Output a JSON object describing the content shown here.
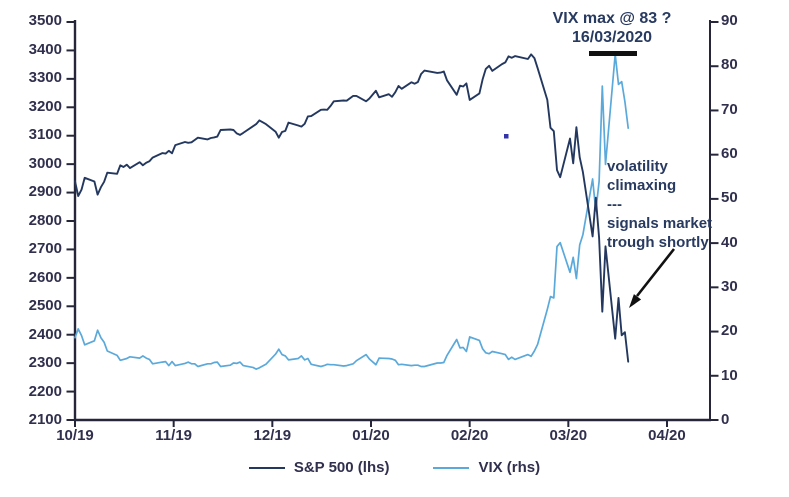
{
  "page": {
    "background": "#ffffff"
  },
  "annotations": {
    "vix_max_line1": "VIX max @ 83 ?",
    "vix_max_line2": "16/03/2020",
    "note_lines": [
      "volatility",
      "climaxing",
      "---",
      "signals market",
      "trough shortly"
    ]
  },
  "legend": {
    "items": [
      {
        "label": "S&P 500 (lhs)",
        "color": "#24385f"
      },
      {
        "label": "VIX (rhs)",
        "color": "#5aa9da"
      }
    ]
  },
  "colors": {
    "sp500_line": "#24385f",
    "vix_line": "#5aa9da",
    "axis": "#26263a",
    "text": "#30304e",
    "annotation_black": "#111111",
    "stray_dot": "#3333aa"
  },
  "chart_data": {
    "type": "line",
    "title": "",
    "x_axis": {
      "tick_labels": [
        "10/19",
        "11/19",
        "12/19",
        "01/20",
        "02/20",
        "03/20",
        "04/20"
      ],
      "start_date": "2019-10-01",
      "span_days": 183,
      "note": "series x values are days since 2019-10-01"
    },
    "left_axis": {
      "label": "S&P 500",
      "min": 2100,
      "max": 3500,
      "step": 100,
      "tick_labels": [
        "3500",
        "3400",
        "3300",
        "3200",
        "3100",
        "3000",
        "2900",
        "2800",
        "2700",
        "2600",
        "2500",
        "2400",
        "2300",
        "2200",
        "2100"
      ]
    },
    "right_axis": {
      "label": "VIX",
      "min": 0,
      "max": 90,
      "step": 10,
      "tick_labels": [
        "90",
        "80",
        "70",
        "60",
        "50",
        "40",
        "30",
        "20",
        "10",
        "0"
      ]
    },
    "grid": false,
    "legend_position": "bottom-center",
    "annotations": {
      "vix_max_value": 83,
      "vix_max_date": "16/03/2020"
    },
    "series": [
      {
        "name": "S&P 500 (lhs)",
        "axis": "left",
        "color": "#24385f",
        "points": [
          [
            0,
            2940
          ],
          [
            1,
            2888
          ],
          [
            2,
            2910
          ],
          [
            3,
            2952
          ],
          [
            6,
            2939
          ],
          [
            7,
            2893
          ],
          [
            8,
            2919
          ],
          [
            9,
            2938
          ],
          [
            10,
            2970
          ],
          [
            13,
            2966
          ],
          [
            14,
            2996
          ],
          [
            15,
            2990
          ],
          [
            16,
            2998
          ],
          [
            17,
            2986
          ],
          [
            20,
            3007
          ],
          [
            21,
            2996
          ],
          [
            22,
            3005
          ],
          [
            23,
            3010
          ],
          [
            24,
            3023
          ],
          [
            27,
            3039
          ],
          [
            28,
            3037
          ],
          [
            29,
            3047
          ],
          [
            30,
            3038
          ],
          [
            31,
            3067
          ],
          [
            34,
            3078
          ],
          [
            35,
            3075
          ],
          [
            36,
            3077
          ],
          [
            37,
            3085
          ],
          [
            38,
            3093
          ],
          [
            41,
            3087
          ],
          [
            42,
            3092
          ],
          [
            43,
            3094
          ],
          [
            44,
            3097
          ],
          [
            45,
            3120
          ],
          [
            48,
            3122
          ],
          [
            49,
            3120
          ],
          [
            50,
            3108
          ],
          [
            51,
            3103
          ],
          [
            52,
            3110
          ],
          [
            55,
            3133
          ],
          [
            56,
            3141
          ],
          [
            57,
            3154
          ],
          [
            59,
            3141
          ],
          [
            62,
            3114
          ],
          [
            63,
            3093
          ],
          [
            64,
            3113
          ],
          [
            65,
            3117
          ],
          [
            66,
            3146
          ],
          [
            69,
            3136
          ],
          [
            70,
            3132
          ],
          [
            71,
            3142
          ],
          [
            72,
            3168
          ],
          [
            73,
            3169
          ],
          [
            76,
            3191
          ],
          [
            77,
            3192
          ],
          [
            78,
            3191
          ],
          [
            79,
            3205
          ],
          [
            80,
            3221
          ],
          [
            83,
            3224
          ],
          [
            84,
            3223
          ],
          [
            86,
            3240
          ],
          [
            87,
            3240
          ],
          [
            90,
            3221
          ],
          [
            91,
            3231
          ],
          [
            93,
            3258
          ],
          [
            94,
            3235
          ],
          [
            97,
            3246
          ],
          [
            98,
            3237
          ],
          [
            99,
            3253
          ],
          [
            100,
            3275
          ],
          [
            101,
            3265
          ],
          [
            104,
            3288
          ],
          [
            105,
            3283
          ],
          [
            106,
            3289
          ],
          [
            107,
            3317
          ],
          [
            108,
            3329
          ],
          [
            112,
            3321
          ],
          [
            113,
            3322
          ],
          [
            114,
            3326
          ],
          [
            115,
            3295
          ],
          [
            118,
            3244
          ],
          [
            119,
            3276
          ],
          [
            120,
            3273
          ],
          [
            121,
            3284
          ],
          [
            122,
            3226
          ],
          [
            125,
            3249
          ],
          [
            126,
            3298
          ],
          [
            127,
            3335
          ],
          [
            128,
            3346
          ],
          [
            129,
            3328
          ],
          [
            132,
            3352
          ],
          [
            133,
            3358
          ],
          [
            134,
            3379
          ],
          [
            135,
            3374
          ],
          [
            136,
            3380
          ],
          [
            140,
            3370
          ],
          [
            141,
            3386
          ],
          [
            142,
            3373
          ],
          [
            143,
            3338
          ],
          [
            146,
            3226
          ],
          [
            147,
            3128
          ],
          [
            148,
            3116
          ],
          [
            149,
            2979
          ],
          [
            150,
            2954
          ],
          [
            153,
            3090
          ],
          [
            154,
            3003
          ],
          [
            155,
            3130
          ],
          [
            156,
            3024
          ],
          [
            157,
            2972
          ],
          [
            160,
            2746
          ],
          [
            161,
            2882
          ],
          [
            162,
            2741
          ],
          [
            163,
            2481
          ],
          [
            164,
            2711
          ],
          [
            167,
            2386
          ],
          [
            168,
            2529
          ],
          [
            169,
            2398
          ],
          [
            170,
            2409
          ],
          [
            171,
            2305
          ]
        ]
      },
      {
        "name": "VIX (rhs)",
        "axis": "right",
        "color": "#5aa9da",
        "points": [
          [
            0,
            18.6
          ],
          [
            1,
            20.6
          ],
          [
            2,
            19.1
          ],
          [
            3,
            17.0
          ],
          [
            6,
            17.9
          ],
          [
            7,
            20.3
          ],
          [
            8,
            18.6
          ],
          [
            9,
            17.6
          ],
          [
            10,
            15.6
          ],
          [
            13,
            14.6
          ],
          [
            14,
            13.5
          ],
          [
            15,
            13.7
          ],
          [
            16,
            13.9
          ],
          [
            17,
            14.3
          ],
          [
            20,
            14.0
          ],
          [
            21,
            14.5
          ],
          [
            22,
            14.0
          ],
          [
            23,
            13.7
          ],
          [
            24,
            12.7
          ],
          [
            27,
            13.1
          ],
          [
            28,
            13.2
          ],
          [
            29,
            12.3
          ],
          [
            30,
            13.2
          ],
          [
            31,
            12.3
          ],
          [
            34,
            12.8
          ],
          [
            35,
            13.1
          ],
          [
            36,
            12.7
          ],
          [
            37,
            12.7
          ],
          [
            38,
            12.1
          ],
          [
            41,
            12.7
          ],
          [
            42,
            12.7
          ],
          [
            43,
            13.0
          ],
          [
            44,
            13.1
          ],
          [
            45,
            12.1
          ],
          [
            48,
            12.4
          ],
          [
            49,
            12.9
          ],
          [
            50,
            12.8
          ],
          [
            51,
            13.1
          ],
          [
            52,
            12.3
          ],
          [
            55,
            11.9
          ],
          [
            56,
            11.5
          ],
          [
            57,
            11.8
          ],
          [
            59,
            12.6
          ],
          [
            62,
            14.9
          ],
          [
            63,
            16.0
          ],
          [
            64,
            14.8
          ],
          [
            65,
            14.5
          ],
          [
            66,
            13.6
          ],
          [
            69,
            13.9
          ],
          [
            70,
            14.5
          ],
          [
            71,
            13.6
          ],
          [
            72,
            13.9
          ],
          [
            73,
            12.6
          ],
          [
            76,
            12.1
          ],
          [
            77,
            12.3
          ],
          [
            78,
            12.6
          ],
          [
            79,
            12.5
          ],
          [
            80,
            12.5
          ],
          [
            83,
            12.2
          ],
          [
            84,
            12.3
          ],
          [
            86,
            12.7
          ],
          [
            87,
            13.4
          ],
          [
            90,
            14.8
          ],
          [
            91,
            13.8
          ],
          [
            93,
            12.5
          ],
          [
            94,
            14.0
          ],
          [
            97,
            13.9
          ],
          [
            98,
            13.8
          ],
          [
            99,
            13.5
          ],
          [
            100,
            12.5
          ],
          [
            101,
            12.6
          ],
          [
            104,
            12.3
          ],
          [
            105,
            12.4
          ],
          [
            106,
            12.4
          ],
          [
            107,
            12.1
          ],
          [
            108,
            12.1
          ],
          [
            112,
            12.9
          ],
          [
            113,
            12.9
          ],
          [
            114,
            13.0
          ],
          [
            115,
            14.6
          ],
          [
            118,
            18.2
          ],
          [
            119,
            16.3
          ],
          [
            120,
            16.4
          ],
          [
            121,
            15.5
          ],
          [
            122,
            18.8
          ],
          [
            125,
            18.0
          ],
          [
            126,
            16.1
          ],
          [
            127,
            15.2
          ],
          [
            128,
            15.0
          ],
          [
            129,
            15.5
          ],
          [
            132,
            15.0
          ],
          [
            133,
            14.8
          ],
          [
            134,
            13.7
          ],
          [
            135,
            14.2
          ],
          [
            136,
            13.7
          ],
          [
            140,
            14.8
          ],
          [
            141,
            14.4
          ],
          [
            142,
            15.6
          ],
          [
            143,
            17.1
          ],
          [
            146,
            25.0
          ],
          [
            147,
            27.9
          ],
          [
            148,
            27.6
          ],
          [
            149,
            39.2
          ],
          [
            150,
            40.1
          ],
          [
            153,
            33.4
          ],
          [
            154,
            36.8
          ],
          [
            155,
            32.0
          ],
          [
            156,
            39.6
          ],
          [
            157,
            41.9
          ],
          [
            160,
            54.5
          ],
          [
            161,
            47.3
          ],
          [
            162,
            53.9
          ],
          [
            163,
            75.5
          ],
          [
            164,
            57.8
          ],
          [
            167,
            82.7
          ],
          [
            168,
            75.9
          ],
          [
            169,
            76.5
          ],
          [
            170,
            72.0
          ],
          [
            171,
            66.0
          ]
        ]
      }
    ]
  }
}
